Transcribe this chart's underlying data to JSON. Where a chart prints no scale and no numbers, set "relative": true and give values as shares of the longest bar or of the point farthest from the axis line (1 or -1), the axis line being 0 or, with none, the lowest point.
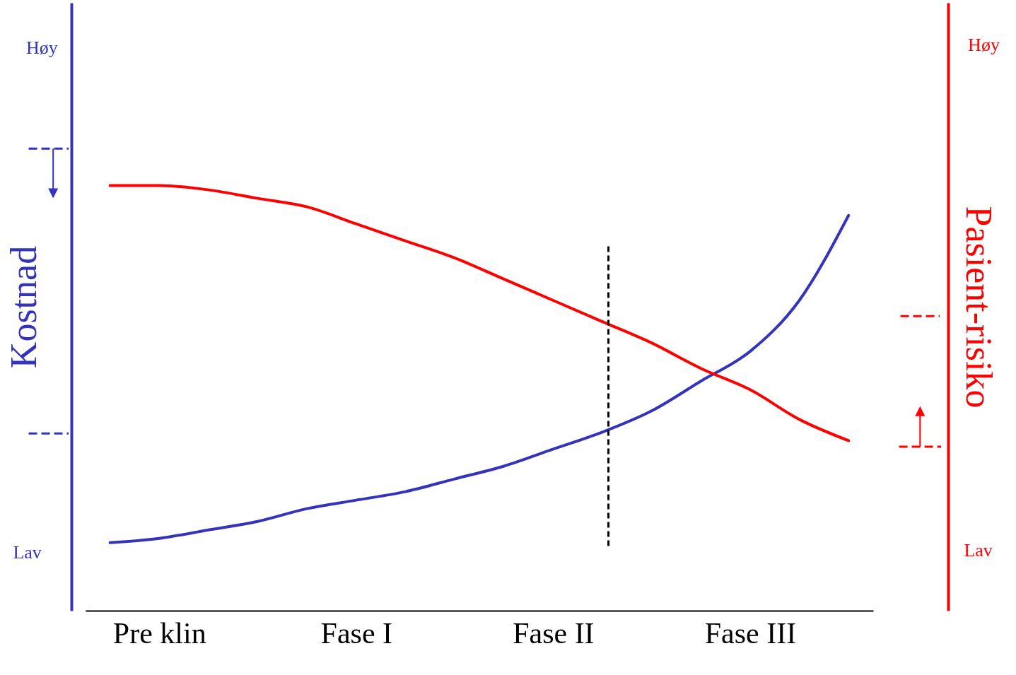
{
  "chart_data": {
    "type": "line",
    "relative": true,
    "ylabel": "Kostnad",
    "y2label": "Pasient-risiko",
    "categories": [
      null,
      "Pre klin",
      null,
      null,
      null,
      "Fase I",
      null,
      null,
      null,
      "Fase II",
      null,
      null,
      null,
      "Fase III",
      null,
      null
    ],
    "annotations": [
      "Høy",
      "Lav",
      "Høy",
      "Lav"
    ],
    "series": [
      {
        "color": "#3333bb",
        "values": [
          0.16,
          0.17,
          0.19,
          0.21,
          0.24,
          0.26,
          0.28,
          0.31,
          0.34,
          0.38,
          0.42,
          0.47,
          0.54,
          0.61,
          0.73,
          0.93
        ]
      },
      {
        "color": "#ff0000",
        "axis": "y2",
        "values": [
          1.0,
          1.0,
          0.99,
          0.97,
          0.95,
          0.91,
          0.87,
          0.83,
          0.78,
          0.73,
          0.68,
          0.63,
          0.57,
          0.52,
          0.45,
          0.4
        ]
      }
    ],
    "marker": "none",
    "line_style": "solid"
  }
}
